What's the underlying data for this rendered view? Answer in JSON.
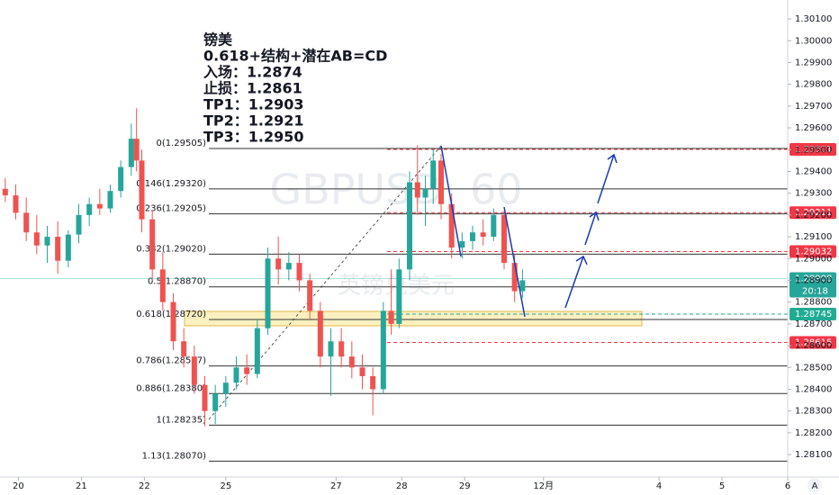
{
  "chart_data": {
    "type": "candlestick",
    "watermark": "GBPUSD, 60",
    "watermark_sub": "英镑兑美元",
    "notes": [
      "镑美",
      "0.618+结构+潜在AB=CD",
      "入场：1.2874",
      "止损：1.2861",
      "TP1：1.2903",
      "TP2：1.2921",
      "TP3：1.2950"
    ],
    "xlim": [
      0,
      300
    ],
    "ylim": [
      1.27997,
      1.30187
    ],
    "xticks": [
      {
        "value": 7,
        "label": "20"
      },
      {
        "value": 31,
        "label": "21"
      },
      {
        "value": 55,
        "label": "22"
      },
      {
        "value": 86,
        "label": "25"
      },
      {
        "value": 128,
        "label": "27"
      },
      {
        "value": 153,
        "label": "28"
      },
      {
        "value": 177,
        "label": "29"
      },
      {
        "value": 207,
        "label": "12月"
      },
      {
        "value": 251,
        "label": "4"
      },
      {
        "value": 275,
        "label": "5"
      },
      {
        "value": 300,
        "label": "6"
      }
    ],
    "yticks": [
      {
        "value": 1.301,
        "label": "1.30100"
      },
      {
        "value": 1.3,
        "label": "1.30000"
      },
      {
        "value": 1.299,
        "label": "1.29900"
      },
      {
        "value": 1.298,
        "label": "1.29800"
      },
      {
        "value": 1.297,
        "label": "1.29700"
      },
      {
        "value": 1.296,
        "label": "1.29600"
      },
      {
        "value": 1.295,
        "label": "1.29500"
      },
      {
        "value": 1.294,
        "label": "1.29400"
      },
      {
        "value": 1.293,
        "label": "1.29300"
      },
      {
        "value": 1.292,
        "label": "1.29200"
      },
      {
        "value": 1.291,
        "label": "1.29100"
      },
      {
        "value": 1.29,
        "label": "1.29000"
      },
      {
        "value": 1.289,
        "label": "1.28900"
      },
      {
        "value": 1.288,
        "label": "1.28800"
      },
      {
        "value": 1.287,
        "label": "1.28700"
      },
      {
        "value": 1.286,
        "label": "1.28600"
      },
      {
        "value": 1.285,
        "label": "1.28500"
      },
      {
        "value": 1.284,
        "label": "1.28400"
      },
      {
        "value": 1.283,
        "label": "1.28300"
      },
      {
        "value": 1.282,
        "label": "1.28200"
      },
      {
        "value": 1.281,
        "label": "1.28100"
      }
    ],
    "up_color": "#26a69a",
    "down_color": "#ef5350",
    "x": [
      2,
      6,
      10,
      14,
      18,
      22,
      26,
      30,
      34,
      38,
      42,
      46,
      50,
      52,
      54,
      58,
      62,
      66,
      70,
      74,
      78,
      82,
      86,
      90,
      94,
      98,
      102,
      106,
      110,
      114,
      118,
      122,
      126,
      130,
      134,
      138,
      142,
      146,
      149,
      152,
      156,
      159,
      162,
      165,
      168,
      172,
      176,
      180,
      184,
      188,
      192,
      196,
      199
    ],
    "open": [
      1.2932,
      1.2929,
      1.2921,
      1.2912,
      1.2906,
      1.291,
      1.2899,
      1.2911,
      1.292,
      1.2925,
      1.2923,
      1.2931,
      1.2942,
      1.2955,
      1.2945,
      1.2918,
      1.2895,
      1.288,
      1.2862,
      1.2855,
      1.2842,
      1.283,
      1.2838,
      1.2843,
      1.285,
      1.2847,
      1.2868,
      1.29,
      1.2895,
      1.2898,
      1.289,
      1.2876,
      1.2855,
      1.2862,
      1.2855,
      1.285,
      1.2846,
      1.284,
      1.2876,
      1.287,
      1.2895,
      1.2935,
      1.2928,
      1.2932,
      1.2945,
      1.2925,
      1.2905,
      1.2908,
      1.2912,
      1.291,
      1.292,
      1.2898,
      1.2885
    ],
    "high": [
      1.2937,
      1.2934,
      1.2928,
      1.292,
      1.2915,
      1.2917,
      1.2913,
      1.2925,
      1.2928,
      1.2932,
      1.2934,
      1.2945,
      1.2962,
      1.2969,
      1.295,
      1.2922,
      1.2903,
      1.2884,
      1.2868,
      1.286,
      1.2846,
      1.2842,
      1.2846,
      1.2855,
      1.2856,
      1.2872,
      1.2905,
      1.291,
      1.2903,
      1.2902,
      1.2893,
      1.288,
      1.2868,
      1.2868,
      1.2862,
      1.2856,
      1.285,
      1.288,
      1.2895,
      1.29,
      1.294,
      1.2952,
      1.2938,
      1.295,
      1.2948,
      1.293,
      1.2912,
      1.2915,
      1.2918,
      1.2923,
      1.2922,
      1.2902,
      1.2895
    ],
    "low": [
      1.2926,
      1.2918,
      1.2908,
      1.2902,
      1.2898,
      1.2893,
      1.2896,
      1.2907,
      1.2915,
      1.292,
      1.2921,
      1.2928,
      1.2938,
      1.294,
      1.2912,
      1.289,
      1.2876,
      1.2858,
      1.285,
      1.2838,
      1.2823,
      1.2824,
      1.2832,
      1.284,
      1.2842,
      1.2845,
      1.2865,
      1.2888,
      1.289,
      1.2885,
      1.2872,
      1.285,
      1.2837,
      1.285,
      1.2845,
      1.284,
      1.2828,
      1.2838,
      1.2865,
      1.2868,
      1.289,
      1.292,
      1.2915,
      1.2925,
      1.2918,
      1.29,
      1.29,
      1.2904,
      1.2906,
      1.2908,
      1.2895,
      1.288,
      1.2882
    ],
    "close": [
      1.2929,
      1.2921,
      1.2912,
      1.2906,
      1.291,
      1.2899,
      1.2911,
      1.292,
      1.2925,
      1.2923,
      1.2931,
      1.2942,
      1.2955,
      1.2945,
      1.2918,
      1.2895,
      1.288,
      1.2862,
      1.2855,
      1.2842,
      1.283,
      1.2838,
      1.2843,
      1.285,
      1.2847,
      1.2868,
      1.29,
      1.2895,
      1.2898,
      1.289,
      1.2876,
      1.2855,
      1.2862,
      1.2855,
      1.285,
      1.2846,
      1.284,
      1.2876,
      1.287,
      1.2895,
      1.2935,
      1.2928,
      1.2932,
      1.2945,
      1.2925,
      1.2905,
      1.2908,
      1.2912,
      1.291,
      1.292,
      1.2898,
      1.2885,
      1.289
    ],
    "fib_levels": [
      {
        "value": 1.29505,
        "label": "0(1.29505)"
      },
      {
        "value": 1.2932,
        "label": "0.146(1.29320)"
      },
      {
        "value": 1.29205,
        "label": "0.236(1.29205)"
      },
      {
        "value": 1.2902,
        "label": "0.382(1.29020)"
      },
      {
        "value": 1.2887,
        "label": "0.5(1.28870)"
      },
      {
        "value": 1.2872,
        "label": "0.618(1.28720)"
      },
      {
        "value": 1.28507,
        "label": "0.786(1.28507)"
      },
      {
        "value": 1.2838,
        "label": "0.886(1.28380)"
      },
      {
        "value": 1.28235,
        "label": "1(1.28235)"
      },
      {
        "value": 1.2807,
        "label": "1.13(1.28070)"
      }
    ],
    "price_lines": [
      {
        "value": 1.29501,
        "label": "1.29501",
        "color": "#f23645"
      },
      {
        "value": 1.29211,
        "label": "1.29211",
        "color": "#f23645"
      },
      {
        "value": 1.29032,
        "label": "1.29032",
        "color": "#f23645"
      },
      {
        "value": 1.28745,
        "label": "1.28745",
        "color": "#22ab94"
      },
      {
        "value": 1.28615,
        "label": "1.28615",
        "color": "#f23645"
      }
    ],
    "last_price": {
      "value": 1.28908,
      "label": "1.28908",
      "countdown": "20:18",
      "color": "#26a69a"
    }
  }
}
